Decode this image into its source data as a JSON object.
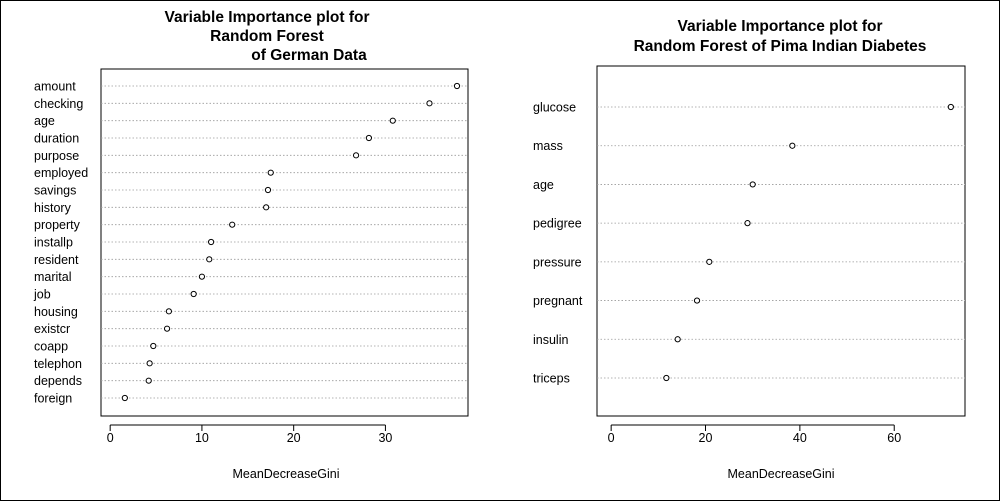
{
  "chart_data": [
    {
      "type": "scatter",
      "title": [
        "Variable Importance plot for",
        "Random Forest",
        "of German Data"
      ],
      "xlabel": "MeanDecreaseGini",
      "xlim": [
        -1,
        39
      ],
      "xticks": [
        0,
        10,
        20,
        30
      ],
      "grid": "dotted horizontal lines at each variable",
      "categories": [
        "amount",
        "checking",
        "age",
        "duration",
        "purpose",
        "employed",
        "savings",
        "history",
        "property",
        "installp",
        "resident",
        "marital",
        "job",
        "housing",
        "existcr",
        "coapp",
        "telephon",
        "depends",
        "foreign"
      ],
      "values": [
        37.8,
        34.8,
        30.8,
        28.2,
        26.8,
        17.5,
        17.2,
        17.0,
        13.3,
        11.0,
        10.8,
        10.0,
        9.1,
        6.4,
        6.2,
        4.7,
        4.3,
        4.2,
        1.6
      ]
    },
    {
      "type": "scatter",
      "title": [
        "Variable Importance plot for",
        "Random Forest of Pima Indian Diabetes"
      ],
      "xlabel": "MeanDecreaseGini",
      "xlim": [
        -3,
        75
      ],
      "xticks": [
        0,
        20,
        40,
        60
      ],
      "grid": "dotted horizontal lines at each variable",
      "categories": [
        "glucose",
        "mass",
        "age",
        "pedigree",
        "pressure",
        "pregnant",
        "insulin",
        "triceps"
      ],
      "values": [
        72.0,
        38.4,
        30.0,
        28.9,
        20.8,
        18.2,
        14.1,
        11.7
      ]
    }
  ]
}
